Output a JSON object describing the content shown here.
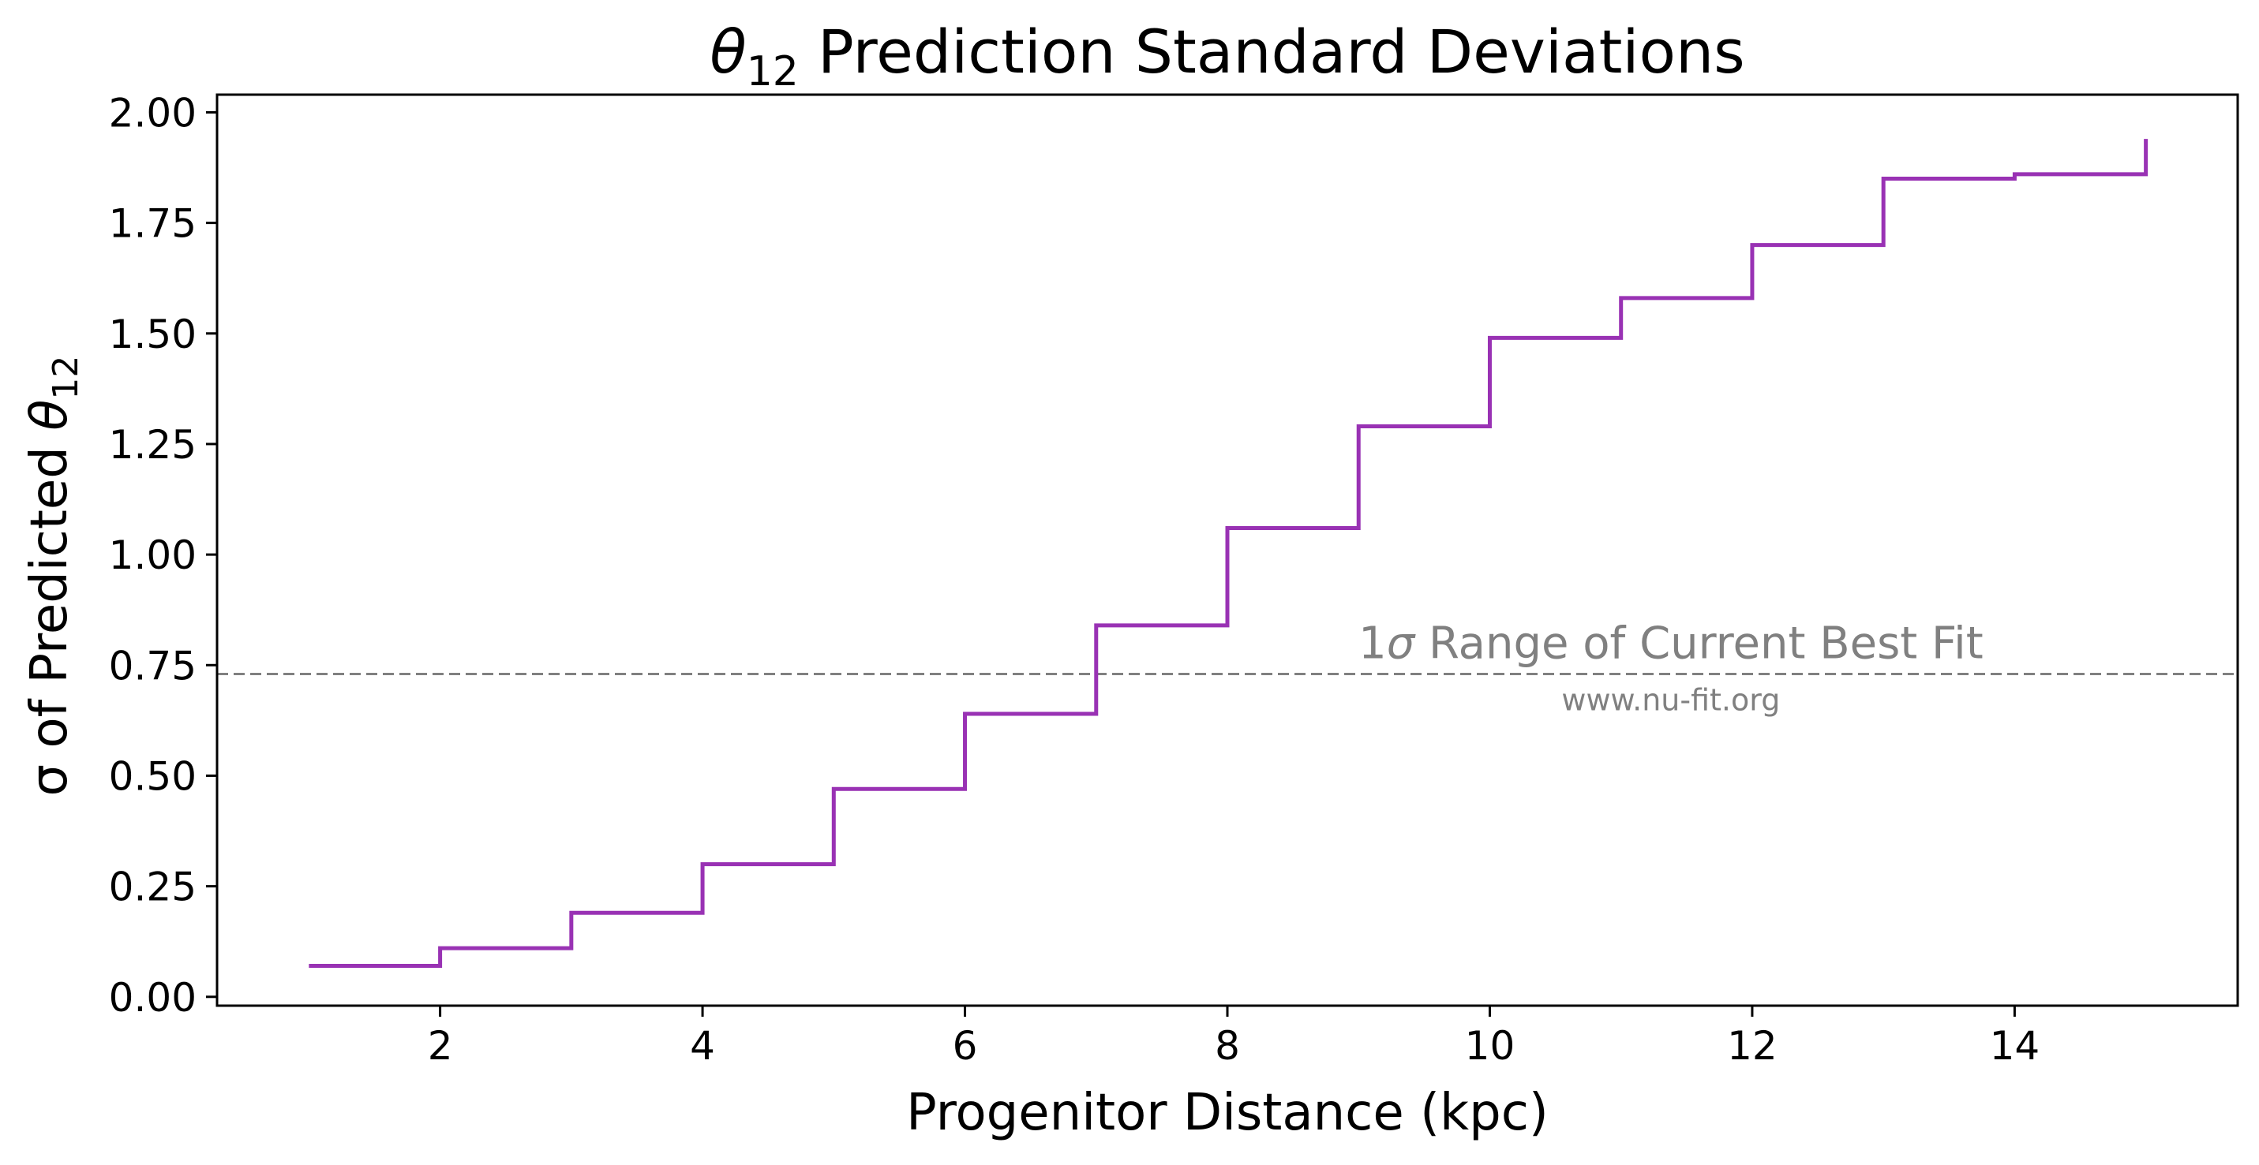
{
  "chart_data": {
    "type": "line",
    "style": "step-post",
    "title": "θ12 Prediction Standard Deviations",
    "title_parts": {
      "symbol": "θ",
      "subscript": "12",
      "rest": " Prediction Standard Deviations"
    },
    "xlabel": "Progenitor Distance (kpc)",
    "ylabel": "σ of Predicted θ12",
    "ylabel_parts": {
      "prefix": "σ of Predicted ",
      "symbol": "θ",
      "subscript": "12"
    },
    "xlim": [
      0.3,
      15.7
    ],
    "ylim": [
      -0.02,
      2.04
    ],
    "x_ticks": [
      2,
      4,
      6,
      8,
      10,
      12,
      14
    ],
    "x_tick_labels": [
      "2",
      "4",
      "6",
      "8",
      "10",
      "12",
      "14"
    ],
    "y_ticks": [
      0,
      0.25,
      0.5,
      0.75,
      1.0,
      1.25,
      1.5,
      1.75,
      2.0
    ],
    "y_tick_labels": [
      "0.00",
      "0.25",
      "0.50",
      "0.75",
      "1.00",
      "1.25",
      "1.50",
      "1.75",
      "2.00"
    ],
    "grid": false,
    "series": [
      {
        "color": "#9932b4",
        "x": [
          1,
          2,
          3,
          4,
          5,
          6,
          7,
          8,
          9,
          10,
          11,
          12,
          13,
          14,
          15
        ],
        "values": [
          0.07,
          0.11,
          0.19,
          0.3,
          0.47,
          0.64,
          0.84,
          1.06,
          1.29,
          1.49,
          1.58,
          1.7,
          1.85,
          1.86,
          1.94
        ]
      }
    ],
    "reference_line": {
      "y": 0.73,
      "style": "dashed",
      "color": "#808080",
      "label": "1σ Range of Current Best Fit",
      "label_parts": {
        "prefix": "1",
        "symbol": "σ",
        "rest": " Range of Current Best Fit"
      },
      "sublabel": "www.nu-fit.org"
    }
  }
}
